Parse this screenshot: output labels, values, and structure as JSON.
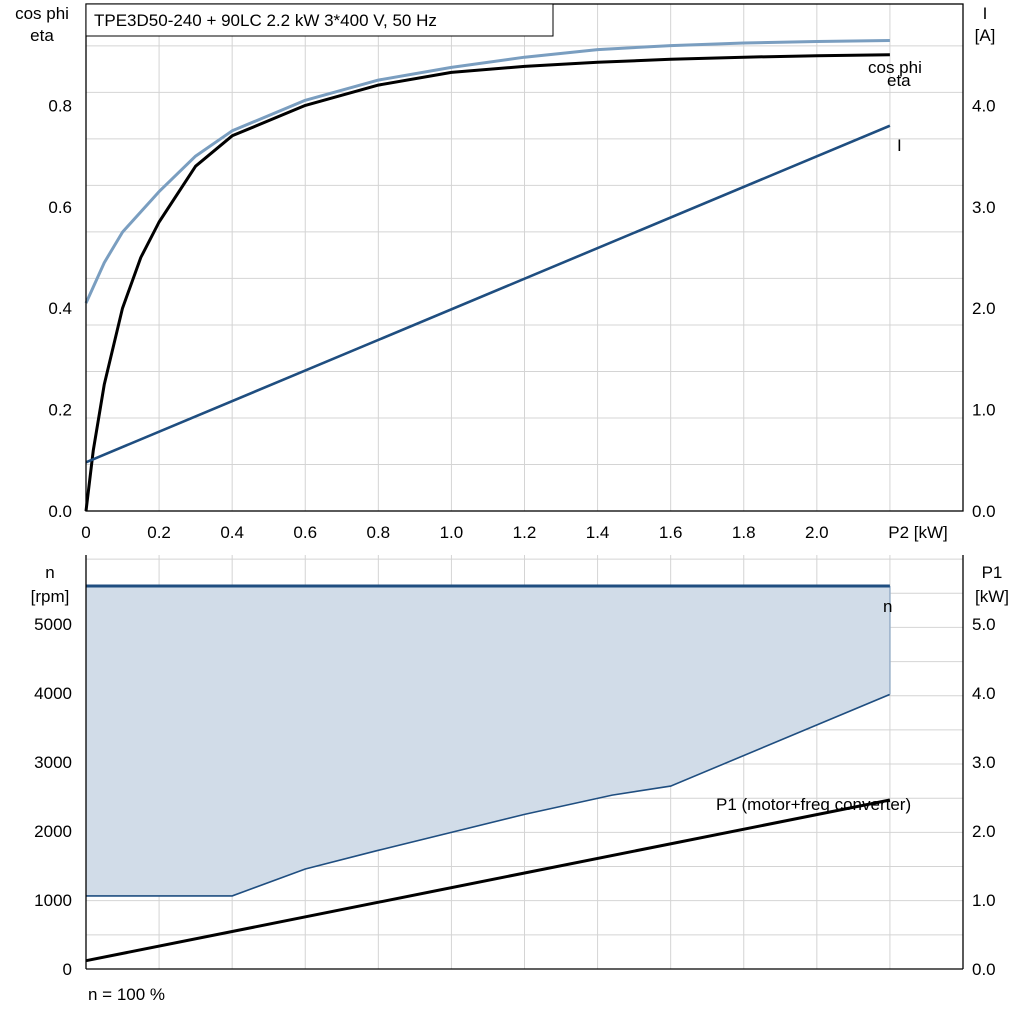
{
  "chart_data": [
    {
      "type": "line",
      "title": "TPE3D50-240 + 90LC   2.2 kW   3*400 V, 50 Hz",
      "xlabel": "P2 [kW]",
      "ylabel_left": [
        "cos phi",
        "eta"
      ],
      "ylabel_right": [
        "I",
        "[A]"
      ],
      "xlim": [
        0,
        2.4
      ],
      "ylim_left": [
        0,
        1.0
      ],
      "ylim_right": [
        0,
        5.0
      ],
      "x_ticks": [
        "0",
        "0.2",
        "0.4",
        "0.6",
        "0.8",
        "1.0",
        "1.2",
        "1.4",
        "1.6",
        "1.8",
        "2.0"
      ],
      "y_ticks_left": [
        "0.0",
        "0.2",
        "0.4",
        "0.6",
        "0.8"
      ],
      "y_ticks_right": [
        "0.0",
        "1.0",
        "2.0",
        "3.0",
        "4.0"
      ],
      "grid": true,
      "series": [
        {
          "name": "cos phi",
          "axis": "left",
          "color": "#7a9ec0",
          "x": [
            0,
            0.05,
            0.1,
            0.2,
            0.3,
            0.4,
            0.6,
            0.8,
            1.0,
            1.2,
            1.4,
            1.6,
            1.8,
            2.0,
            2.2
          ],
          "values": [
            0.41,
            0.49,
            0.55,
            0.63,
            0.7,
            0.75,
            0.81,
            0.85,
            0.875,
            0.895,
            0.91,
            0.918,
            0.923,
            0.926,
            0.928
          ]
        },
        {
          "name": "eta",
          "axis": "left",
          "color": "#000000",
          "x": [
            0,
            0.02,
            0.05,
            0.1,
            0.15,
            0.2,
            0.3,
            0.4,
            0.6,
            0.8,
            1.0,
            1.2,
            1.4,
            1.6,
            1.8,
            2.0,
            2.2
          ],
          "values": [
            0.0,
            0.12,
            0.25,
            0.4,
            0.5,
            0.57,
            0.68,
            0.74,
            0.8,
            0.84,
            0.865,
            0.877,
            0.885,
            0.891,
            0.895,
            0.898,
            0.9
          ]
        },
        {
          "name": "I",
          "axis": "right",
          "color": "#1f4e80",
          "x": [
            0,
            2.2
          ],
          "values": [
            0.48,
            3.8
          ]
        }
      ]
    },
    {
      "type": "line",
      "xlabel": "",
      "ylabel_left": [
        "n",
        "[rpm]"
      ],
      "ylabel_right": [
        "P1",
        "[kW]"
      ],
      "xlim": [
        0,
        2.4
      ],
      "ylim_left": [
        0,
        6000
      ],
      "ylim_right": [
        0,
        6.0
      ],
      "y_ticks_left": [
        "0",
        "1000",
        "2000",
        "3000",
        "4000",
        "5000"
      ],
      "y_ticks_right": [
        "0.0",
        "1.0",
        "2.0",
        "3.0",
        "4.0",
        "5.0"
      ],
      "grid": true,
      "series": [
        {
          "name": "n",
          "axis": "left",
          "color": "#1f4e80",
          "x": [
            0,
            2.2
          ],
          "values": [
            5550,
            5550
          ]
        },
        {
          "name": "",
          "axis": "left",
          "color": "#1f4e80",
          "role": "area-lower-bound",
          "x": [
            0,
            0.4,
            0.6,
            0.8,
            1.2,
            1.44,
            1.6,
            2.2
          ],
          "values": [
            1060,
            1060,
            1450,
            1720,
            2240,
            2520,
            2650,
            3980
          ]
        },
        {
          "name": "P1 (motor+freq converter)",
          "axis": "right",
          "color": "#000000",
          "x": [
            0,
            2.2
          ],
          "values": [
            0.12,
            2.45
          ]
        }
      ],
      "area_color": "#d1dce8",
      "footer": "n = 100 %"
    }
  ]
}
